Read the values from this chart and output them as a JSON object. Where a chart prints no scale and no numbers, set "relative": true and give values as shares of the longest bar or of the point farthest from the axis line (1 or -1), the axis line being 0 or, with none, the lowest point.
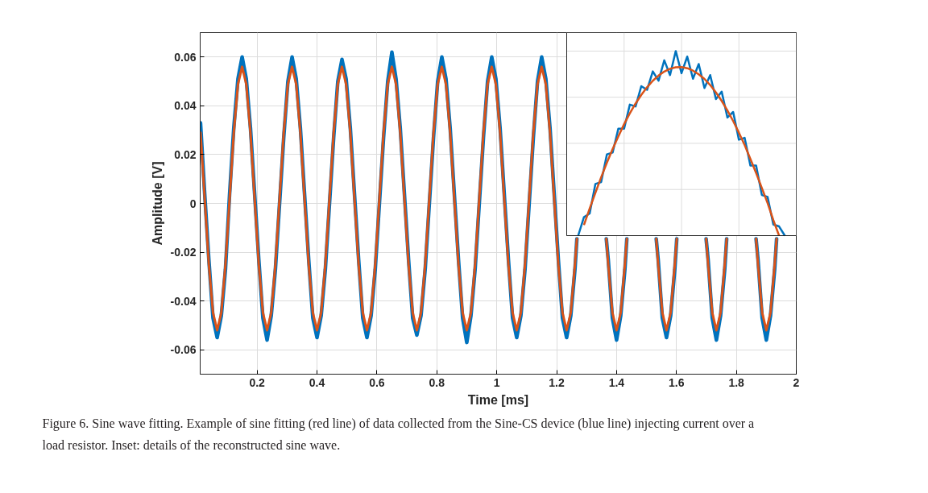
{
  "chart_data": [
    {
      "type": "line",
      "xlabel": "Time [ms]",
      "ylabel": "Amplitude [V]",
      "xlim": [
        0.01,
        2
      ],
      "ylim": [
        -0.07,
        0.07
      ],
      "xticks": [
        0.2,
        0.4,
        0.6,
        0.8,
        1,
        1.2,
        1.4,
        1.6,
        1.8,
        2
      ],
      "yticks": [
        -0.06,
        -0.04,
        -0.02,
        0,
        0.02,
        0.04,
        0.06
      ],
      "grid": true,
      "annotations": [
        "Figure 6. Sine wave fitting. Example of sine fitting (red line) of data collected from the Sine-CS device (blue line) injecting current over a load resistor. Inset: details of the reconstructed sine wave."
      ],
      "series": [
        {
          "color": "#0072bd",
          "x": [
            0.0111,
            0.025,
            0.0389,
            0.0528,
            0.0667,
            0.0806,
            0.0944,
            0.1083,
            0.1222,
            0.1361,
            0.15,
            0.1639,
            0.1778,
            0.1917,
            0.2056,
            0.2194,
            0.2333,
            0.2472,
            0.2611,
            0.275,
            0.2889,
            0.3028,
            0.3167,
            0.3306,
            0.3444,
            0.3583,
            0.3722,
            0.3861,
            0.4,
            0.4139,
            0.4278,
            0.4417,
            0.4556,
            0.4694,
            0.4833,
            0.4972,
            0.5111,
            0.525,
            0.5389,
            0.5528,
            0.5667,
            0.5806,
            0.5944,
            0.6083,
            0.6222,
            0.6361,
            0.65,
            0.6639,
            0.6778,
            0.6917,
            0.7056,
            0.7194,
            0.7333,
            0.7472,
            0.7611,
            0.775,
            0.7889,
            0.8028,
            0.8167,
            0.8306,
            0.8444,
            0.8583,
            0.8722,
            0.8861,
            0.9,
            0.9139,
            0.9278,
            0.9417,
            0.9556,
            0.9694,
            0.9833,
            0.9972,
            1.0111,
            1.025,
            1.0389,
            1.0528,
            1.0667,
            1.0806,
            1.0944,
            1.1083,
            1.1222,
            1.1361,
            1.15,
            1.1639,
            1.1778,
            1.1917,
            1.2056,
            1.2194,
            1.2333,
            1.2472,
            1.2611,
            1.2676,
            1.27,
            1.3657,
            1.3722,
            1.3861,
            1.4,
            1.4139,
            1.4278,
            1.4343,
            1.48,
            1.5324,
            1.5389,
            1.5528,
            1.5667,
            1.5806,
            1.5944,
            1.601,
            1.65,
            1.699,
            1.7056,
            1.7194,
            1.7333,
            1.7472,
            1.7611,
            1.7676,
            1.8,
            1.8657,
            1.8722,
            1.8861,
            1.9,
            1.9139,
            1.9278,
            1.9343
          ],
          "values": [
            0.033,
            0.004,
            -0.023,
            -0.047,
            -0.055,
            -0.046,
            -0.027,
            0.004,
            0.031,
            0.051,
            0.06,
            0.051,
            0.031,
            0.004,
            -0.023,
            -0.047,
            -0.056,
            -0.046,
            -0.027,
            0.0,
            0.027,
            0.05,
            0.06,
            0.051,
            0.031,
            0.004,
            -0.023,
            -0.047,
            -0.055,
            -0.046,
            -0.027,
            0.0,
            0.027,
            0.05,
            0.059,
            0.051,
            0.031,
            0.004,
            -0.023,
            -0.047,
            -0.055,
            -0.046,
            -0.027,
            0.0,
            0.027,
            0.05,
            0.062,
            0.051,
            0.031,
            0.004,
            -0.023,
            -0.047,
            -0.054,
            -0.046,
            -0.027,
            0.0,
            0.027,
            0.05,
            0.06,
            0.051,
            0.031,
            0.004,
            -0.023,
            -0.047,
            -0.057,
            -0.046,
            -0.027,
            0.0,
            0.027,
            0.05,
            0.06,
            0.051,
            0.031,
            0.004,
            -0.023,
            -0.047,
            -0.055,
            -0.046,
            -0.027,
            0.0,
            0.027,
            0.05,
            0.06,
            0.051,
            0.031,
            0.004,
            -0.023,
            -0.047,
            -0.055,
            -0.046,
            -0.027,
            -0.0145,
            null,
            -0.0145,
            -0.023,
            -0.047,
            -0.056,
            -0.046,
            -0.027,
            -0.0145,
            null,
            -0.0145,
            -0.023,
            -0.047,
            -0.055,
            -0.046,
            -0.027,
            -0.0145,
            null,
            -0.0145,
            -0.023,
            -0.047,
            -0.056,
            -0.046,
            -0.027,
            -0.0145,
            null,
            -0.0145,
            -0.023,
            -0.047,
            -0.056,
            -0.046,
            -0.027,
            -0.0145
          ]
        },
        {
          "color": "#d95319",
          "x": [
            0.0111,
            0.025,
            0.0389,
            0.0528,
            0.0667,
            0.0806,
            0.0944,
            0.1083,
            0.1222,
            0.1361,
            0.15,
            0.1639,
            0.1778,
            0.1917,
            0.2056,
            0.2194,
            0.2333,
            0.2472,
            0.2611,
            0.275,
            0.2889,
            0.3028,
            0.3167,
            0.3306,
            0.3444,
            0.3583,
            0.3722,
            0.3861,
            0.4,
            0.4139,
            0.4278,
            0.4417,
            0.4556,
            0.4694,
            0.4833,
            0.4972,
            0.5111,
            0.525,
            0.5389,
            0.5528,
            0.5667,
            0.5806,
            0.5944,
            0.6083,
            0.6222,
            0.6361,
            0.65,
            0.6639,
            0.6778,
            0.6917,
            0.7056,
            0.7194,
            0.7333,
            0.7472,
            0.7611,
            0.775,
            0.7889,
            0.8028,
            0.8167,
            0.8306,
            0.8444,
            0.8583,
            0.8722,
            0.8861,
            0.9,
            0.9139,
            0.9278,
            0.9417,
            0.9556,
            0.9694,
            0.9833,
            0.9972,
            1.0111,
            1.025,
            1.0389,
            1.0528,
            1.0667,
            1.0806,
            1.0944,
            1.1083,
            1.1222,
            1.1361,
            1.15,
            1.1639,
            1.1778,
            1.1917,
            1.2056,
            1.2194,
            1.2333,
            1.2472,
            1.2611,
            1.2676,
            1.27,
            1.3657,
            1.3722,
            1.3861,
            1.4,
            1.4139,
            1.4278,
            1.4343,
            1.48,
            1.5324,
            1.5389,
            1.5528,
            1.5667,
            1.5806,
            1.5944,
            1.601,
            1.65,
            1.699,
            1.7056,
            1.7194,
            1.7333,
            1.7472,
            1.7611,
            1.7676,
            1.8,
            1.8657,
            1.8722,
            1.8861,
            1.9,
            1.9139,
            1.9278,
            1.9343
          ],
          "values": [
            0.029,
            0.002,
            -0.025,
            -0.0448,
            -0.052,
            -0.0448,
            -0.025,
            0.002,
            0.029,
            0.0488,
            0.056,
            0.0488,
            0.029,
            0.002,
            -0.025,
            -0.0448,
            -0.052,
            -0.0448,
            -0.025,
            0.002,
            0.029,
            0.0488,
            0.056,
            0.0488,
            0.029,
            0.002,
            -0.025,
            -0.0448,
            -0.052,
            -0.0448,
            -0.025,
            0.002,
            0.029,
            0.0488,
            0.056,
            0.0488,
            0.029,
            0.002,
            -0.025,
            -0.0448,
            -0.052,
            -0.0448,
            -0.025,
            0.002,
            0.029,
            0.0488,
            0.056,
            0.0488,
            0.029,
            0.002,
            -0.025,
            -0.0448,
            -0.052,
            -0.0448,
            -0.025,
            0.002,
            0.029,
            0.0488,
            0.056,
            0.0488,
            0.029,
            0.002,
            -0.025,
            -0.0448,
            -0.052,
            -0.0448,
            -0.025,
            0.002,
            0.029,
            0.0488,
            0.056,
            0.0488,
            0.029,
            0.002,
            -0.025,
            -0.0448,
            -0.052,
            -0.0448,
            -0.025,
            0.002,
            0.029,
            0.0488,
            0.056,
            0.0488,
            0.029,
            0.002,
            -0.025,
            -0.0448,
            -0.052,
            -0.0448,
            -0.025,
            -0.0145,
            null,
            -0.0145,
            -0.025,
            -0.0448,
            -0.052,
            -0.0448,
            -0.025,
            -0.0145,
            null,
            -0.0145,
            -0.025,
            -0.0448,
            -0.052,
            -0.0448,
            -0.025,
            -0.0145,
            null,
            -0.0145,
            -0.025,
            -0.0448,
            -0.052,
            -0.0448,
            -0.025,
            -0.0145,
            null,
            -0.0145,
            -0.025,
            -0.0448,
            -0.052,
            -0.0448,
            -0.025,
            -0.0145
          ]
        }
      ]
    },
    {
      "type": "line",
      "relative": true,
      "grid": true,
      "categories": [
        null,
        null,
        null,
        null,
        null,
        null,
        null,
        null,
        null,
        null,
        null,
        null,
        null,
        null,
        null,
        null,
        null,
        null,
        null,
        null,
        null,
        null,
        null,
        null,
        null,
        null,
        null,
        null,
        null,
        null,
        null,
        null,
        null,
        null,
        null,
        null,
        null,
        null,
        null,
        null,
        null
      ],
      "series": [
        {
          "color": "#0072bd",
          "values": [
            null,
            null,
            0,
            0.1,
            0.12,
            0.28,
            0.29,
            0.44,
            0.45,
            0.58,
            0.58,
            0.71,
            0.7,
            0.81,
            0.79,
            0.89,
            0.84,
            0.95,
            0.87,
            1.0,
            0.88,
            0.97,
            0.85,
            0.93,
            0.8,
            0.87,
            0.74,
            0.78,
            0.64,
            0.67,
            0.52,
            0.53,
            0.38,
            0.38,
            0.22,
            0.21,
            0.06,
            0.05,
            0.0,
            null,
            null
          ]
        },
        {
          "color": "#d95319",
          "values": [
            null,
            null,
            null,
            0.057,
            0.147,
            0.232,
            0.316,
            0.395,
            0.469,
            0.538,
            0.604,
            0.663,
            0.716,
            0.763,
            0.804,
            0.839,
            0.867,
            0.889,
            0.904,
            0.912,
            0.913,
            0.907,
            0.894,
            0.874,
            0.849,
            0.816,
            0.776,
            0.73,
            0.678,
            0.621,
            0.558,
            0.491,
            0.416,
            0.339,
            0.258,
            0.176,
            0.084,
            0,
            null,
            null,
            null
          ]
        }
      ]
    }
  ]
}
